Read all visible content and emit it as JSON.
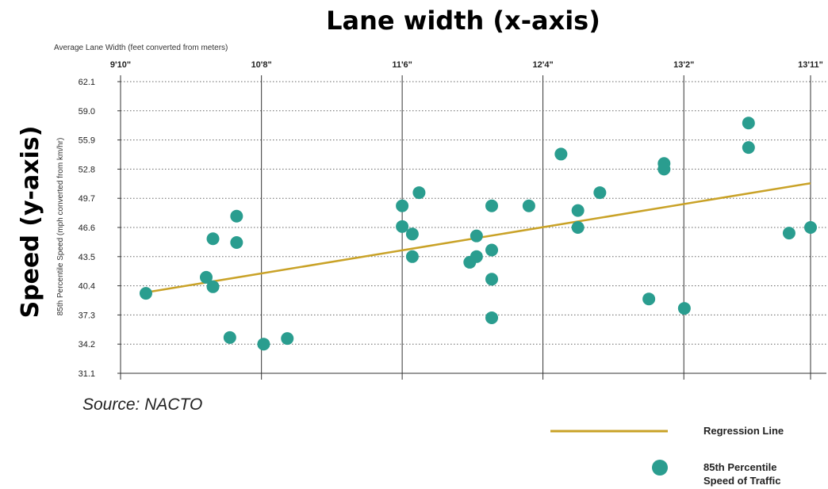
{
  "chart_data": {
    "type": "scatter",
    "title": "Lane width (x-axis)",
    "y_title": "Speed (y-axis)",
    "xlabel": "Average Lane Width (feet converted from meters)",
    "ylabel": "85th Percentile Speed (mph converted from km/hr)",
    "source": "Source: NACTO",
    "xlim": [
      9.833,
      13.917
    ],
    "ylim": [
      31.1,
      62.1
    ],
    "x_ticks": [
      {
        "value": 9.833,
        "label": "9'10\""
      },
      {
        "value": 10.667,
        "label": "10'8\""
      },
      {
        "value": 11.5,
        "label": "11'6\""
      },
      {
        "value": 12.333,
        "label": "12'4\""
      },
      {
        "value": 13.167,
        "label": "13'2\""
      },
      {
        "value": 13.917,
        "label": "13'11\""
      }
    ],
    "y_ticks": [
      {
        "value": 31.1,
        "label": "31.1"
      },
      {
        "value": 34.2,
        "label": "34.2"
      },
      {
        "value": 37.3,
        "label": "37.3"
      },
      {
        "value": 40.4,
        "label": "40.4"
      },
      {
        "value": 43.5,
        "label": "43.5"
      },
      {
        "value": 46.6,
        "label": "46.6"
      },
      {
        "value": 49.7,
        "label": "49.7"
      },
      {
        "value": 52.8,
        "label": "52.8"
      },
      {
        "value": 55.9,
        "label": "55.9"
      },
      {
        "value": 59.0,
        "label": "59.0"
      },
      {
        "value": 62.1,
        "label": "62.1"
      }
    ],
    "grid": "vertical solid at labeled widths, horizontal dotted at each speed tick",
    "series": [
      {
        "name": "85th Percentile Speed of Traffic",
        "kind": "scatter",
        "color": "#2a9d8f",
        "points": [
          {
            "x": 9.983,
            "y": 39.6
          },
          {
            "x": 10.34,
            "y": 41.3
          },
          {
            "x": 10.38,
            "y": 40.3
          },
          {
            "x": 10.38,
            "y": 45.4
          },
          {
            "x": 10.48,
            "y": 34.9
          },
          {
            "x": 10.52,
            "y": 47.8
          },
          {
            "x": 10.52,
            "y": 45.0
          },
          {
            "x": 10.68,
            "y": 34.2
          },
          {
            "x": 10.82,
            "y": 34.8
          },
          {
            "x": 11.5,
            "y": 48.9
          },
          {
            "x": 11.5,
            "y": 46.7
          },
          {
            "x": 11.56,
            "y": 45.9
          },
          {
            "x": 11.56,
            "y": 43.5
          },
          {
            "x": 11.6,
            "y": 50.3
          },
          {
            "x": 11.9,
            "y": 42.9
          },
          {
            "x": 11.94,
            "y": 43.5
          },
          {
            "x": 11.94,
            "y": 45.7
          },
          {
            "x": 12.03,
            "y": 48.9
          },
          {
            "x": 12.03,
            "y": 44.2
          },
          {
            "x": 12.03,
            "y": 41.1
          },
          {
            "x": 12.03,
            "y": 37.0
          },
          {
            "x": 12.25,
            "y": 48.9
          },
          {
            "x": 12.44,
            "y": 54.4
          },
          {
            "x": 12.54,
            "y": 48.4
          },
          {
            "x": 12.54,
            "y": 46.6
          },
          {
            "x": 12.67,
            "y": 50.3
          },
          {
            "x": 12.96,
            "y": 39.0
          },
          {
            "x": 13.05,
            "y": 53.4
          },
          {
            "x": 13.05,
            "y": 52.8
          },
          {
            "x": 13.17,
            "y": 38.0
          },
          {
            "x": 13.55,
            "y": 57.7
          },
          {
            "x": 13.55,
            "y": 55.1
          },
          {
            "x": 13.79,
            "y": 46.0
          },
          {
            "x": 13.917,
            "y": 46.6
          }
        ]
      },
      {
        "name": "Regression Line",
        "kind": "line",
        "color": "#c9a227",
        "points": [
          {
            "x": 9.95,
            "y": 39.6
          },
          {
            "x": 13.917,
            "y": 51.3
          }
        ]
      }
    ],
    "legend": {
      "position": "bottom-right",
      "entries": [
        {
          "label": "Regression Line",
          "marker": "line",
          "color": "#c9a227"
        },
        {
          "label": "85th Percentile Speed of Traffic",
          "label_lines": [
            "85th Percentile",
            "Speed of Traffic"
          ],
          "marker": "circle",
          "color": "#2a9d8f"
        }
      ]
    }
  }
}
